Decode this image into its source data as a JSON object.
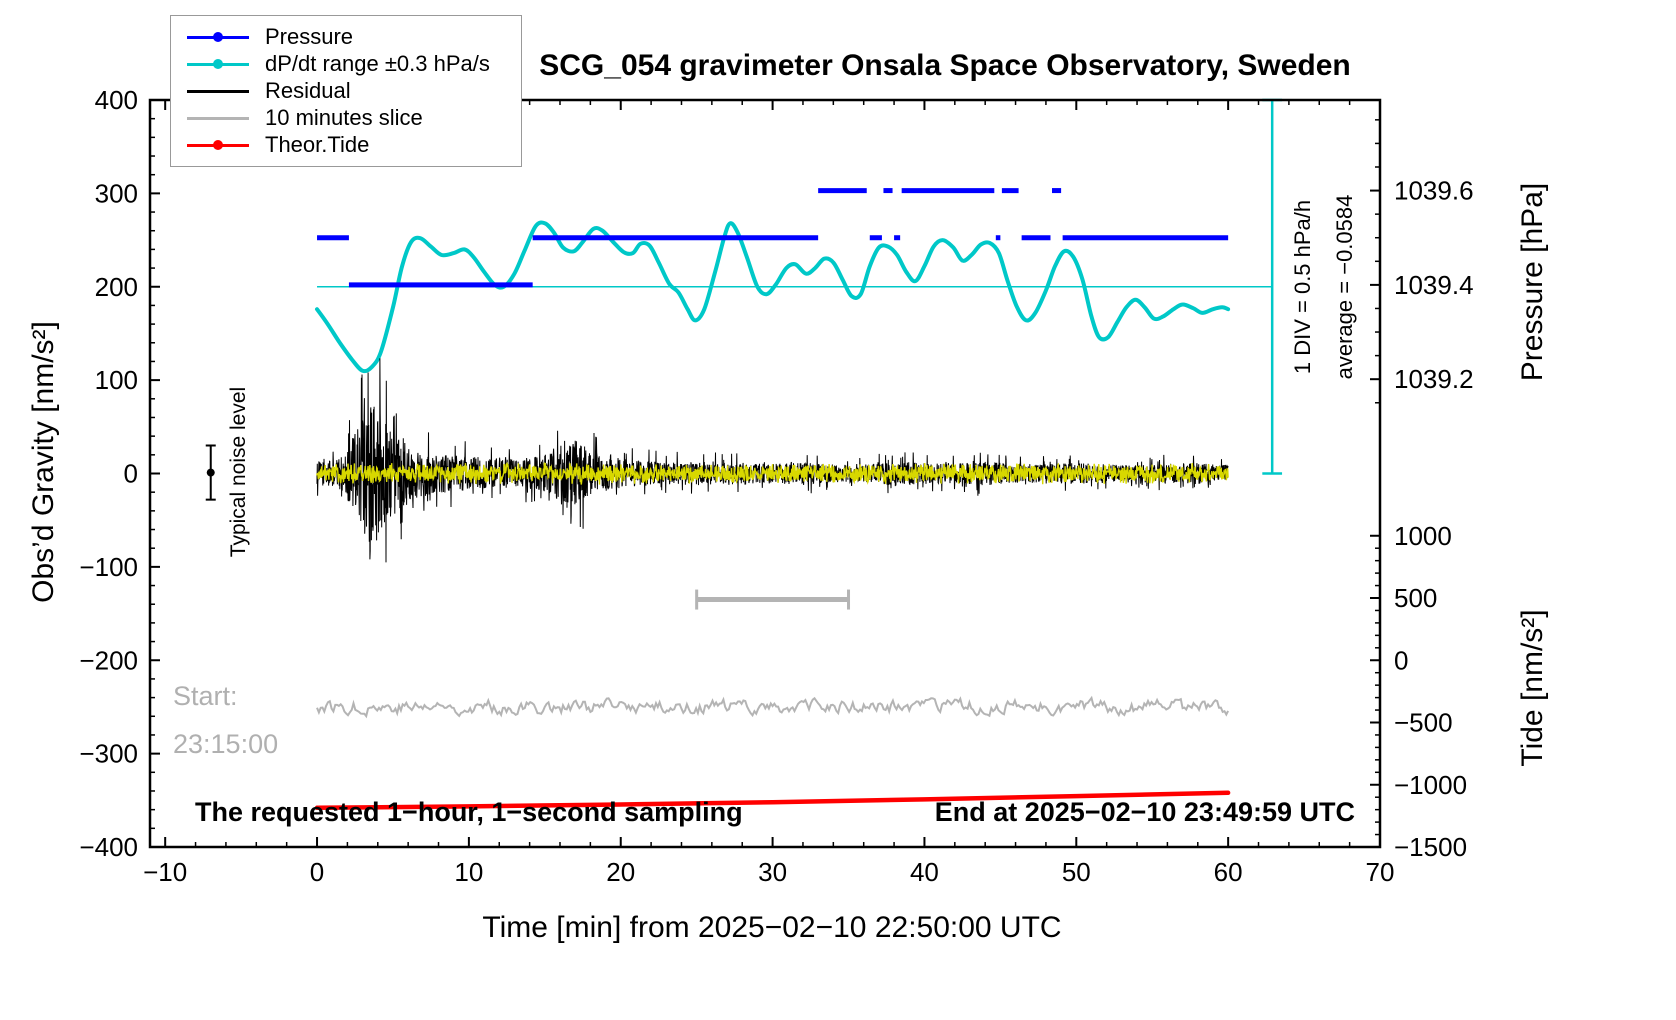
{
  "chart_data": {
    "type": "line",
    "title": "SCG_054 gravimeter Onsala Space Observatory, Sweden",
    "xlabel": "Time [min] from 2025−02−10 22:50:00 UTC",
    "ylabel_left": "Obs’d Gravity [nm/s²]",
    "ylabel_pressure": "Pressure [hPa]",
    "ylabel_tide": "Tide [nm/s²]",
    "xlim": [
      -11,
      70
    ],
    "ylim": [
      -400,
      400
    ],
    "x_ticks": [
      -10,
      0,
      10,
      20,
      30,
      40,
      50,
      60,
      70
    ],
    "y_ticks": [
      -400,
      -300,
      -200,
      -100,
      0,
      100,
      200,
      300,
      400
    ],
    "pressure_ticks": [
      1039.2,
      1039.4,
      1039.6
    ],
    "pressure_map": {
      "offset": 1039.0,
      "scale": 505
    },
    "tide_ticks": [
      -1500,
      -1000,
      -500,
      0,
      500,
      1000
    ],
    "tide_map": {
      "tide0": -1500,
      "left0": -400,
      "left_per_tide": 0.13333
    },
    "grid": false,
    "legend_position": "top-left",
    "colors": {
      "pressure": "#0000ff",
      "dpdt": "#00c8c8",
      "residual": "#000000",
      "slice": "#b4b4b4",
      "tide": "#ff0000",
      "overlay": "#d8d800"
    },
    "legend": [
      {
        "label": "Pressure",
        "color": "#0000ff",
        "dot": true
      },
      {
        "label": "dP/dt range ±0.3 hPa/s",
        "color": "#00c8c8",
        "dot": true
      },
      {
        "label": "Residual",
        "color": "#000000",
        "dot": false
      },
      {
        "label": "10 minutes slice",
        "color": "#b4b4b4",
        "dot": false
      },
      {
        "label": "Theor.Tide",
        "color": "#ff0000",
        "dot": true
      }
    ],
    "annotations": {
      "noise_label": "Typical noise level",
      "start_line1": "Start:",
      "start_line2": "23:15:00",
      "bottom_left": "The requested 1−hour, 1−second sampling",
      "bottom_right": "End at 2025−02−10 23:49:59 UTC",
      "div_scale": "1 DIV = 0.5 hPa/h",
      "average": "average = −0.0584"
    },
    "series": {
      "pressure_segments": [
        {
          "x0": 0.0,
          "x1": 2.1,
          "p": 1039.5
        },
        {
          "x0": 2.1,
          "x1": 14.2,
          "p": 1039.4
        },
        {
          "x0": 14.2,
          "x1": 33.0,
          "p": 1039.5
        },
        {
          "x0": 33.0,
          "x1": 36.2,
          "p": 1039.6
        },
        {
          "x0": 36.4,
          "x1": 37.2,
          "p": 1039.5
        },
        {
          "x0": 37.3,
          "x1": 37.9,
          "p": 1039.6
        },
        {
          "x0": 38.0,
          "x1": 38.4,
          "p": 1039.5
        },
        {
          "x0": 38.5,
          "x1": 44.6,
          "p": 1039.6
        },
        {
          "x0": 44.7,
          "x1": 45.0,
          "p": 1039.5
        },
        {
          "x0": 45.1,
          "x1": 46.2,
          "p": 1039.6
        },
        {
          "x0": 46.4,
          "x1": 48.3,
          "p": 1039.5
        },
        {
          "x0": 48.4,
          "x1": 49.0,
          "p": 1039.6
        },
        {
          "x0": 49.1,
          "x1": 60.0,
          "p": 1039.5
        }
      ],
      "dpdt_ref_level": 200,
      "dpdt": {
        "points": [
          [
            0,
            176
          ],
          [
            0.7,
            160
          ],
          [
            1.5,
            140
          ],
          [
            2.3,
            122
          ],
          [
            3,
            110
          ],
          [
            3.6,
            114
          ],
          [
            4.2,
            130
          ],
          [
            5,
            178
          ],
          [
            5.6,
            222
          ],
          [
            6.2,
            248
          ],
          [
            6.8,
            252
          ],
          [
            7.5,
            243
          ],
          [
            8.2,
            234
          ],
          [
            9,
            236
          ],
          [
            9.7,
            240
          ],
          [
            10.3,
            232
          ],
          [
            11,
            216
          ],
          [
            11.7,
            202
          ],
          [
            12.3,
            200
          ],
          [
            13,
            214
          ],
          [
            13.7,
            240
          ],
          [
            14.4,
            265
          ],
          [
            15,
            268
          ],
          [
            15.6,
            258
          ],
          [
            16.2,
            242
          ],
          [
            16.9,
            238
          ],
          [
            17.5,
            248
          ],
          [
            18.2,
            262
          ],
          [
            18.8,
            260
          ],
          [
            19.5,
            248
          ],
          [
            20.2,
            237
          ],
          [
            20.8,
            236
          ],
          [
            21.3,
            246
          ],
          [
            21.9,
            244
          ],
          [
            22.5,
            226
          ],
          [
            23.2,
            203
          ],
          [
            23.8,
            194
          ],
          [
            24.4,
            176
          ],
          [
            24.9,
            164
          ],
          [
            25.5,
            176
          ],
          [
            26.2,
            215
          ],
          [
            26.8,
            252
          ],
          [
            27.2,
            268
          ],
          [
            27.7,
            258
          ],
          [
            28.3,
            232
          ],
          [
            29,
            200
          ],
          [
            29.6,
            192
          ],
          [
            30.2,
            202
          ],
          [
            30.9,
            220
          ],
          [
            31.5,
            224
          ],
          [
            32.2,
            214
          ],
          [
            32.8,
            220
          ],
          [
            33.4,
            230
          ],
          [
            34,
            226
          ],
          [
            34.6,
            208
          ],
          [
            35.2,
            190
          ],
          [
            35.8,
            192
          ],
          [
            36.4,
            222
          ],
          [
            37,
            242
          ],
          [
            37.6,
            243
          ],
          [
            38.2,
            234
          ],
          [
            38.8,
            216
          ],
          [
            39.4,
            206
          ],
          [
            40,
            222
          ],
          [
            40.6,
            243
          ],
          [
            41.2,
            250
          ],
          [
            41.9,
            242
          ],
          [
            42.5,
            228
          ],
          [
            43.1,
            234
          ],
          [
            43.7,
            245
          ],
          [
            44.3,
            247
          ],
          [
            44.9,
            236
          ],
          [
            45.5,
            205
          ],
          [
            46.1,
            178
          ],
          [
            46.7,
            164
          ],
          [
            47.3,
            172
          ],
          [
            48,
            196
          ],
          [
            48.6,
            222
          ],
          [
            49.2,
            238
          ],
          [
            49.8,
            232
          ],
          [
            50.4,
            208
          ],
          [
            51,
            168
          ],
          [
            51.5,
            146
          ],
          [
            52.1,
            146
          ],
          [
            52.7,
            162
          ],
          [
            53.3,
            178
          ],
          [
            53.9,
            186
          ],
          [
            54.5,
            178
          ],
          [
            55.1,
            166
          ],
          [
            55.7,
            168
          ],
          [
            56.4,
            176
          ],
          [
            57,
            181
          ],
          [
            57.7,
            177
          ],
          [
            58.3,
            172
          ],
          [
            59,
            176
          ],
          [
            59.6,
            178
          ],
          [
            60,
            176
          ]
        ]
      },
      "residual": {
        "x_range": [
          0,
          60
        ],
        "sampling_step": 0.02,
        "envelope": [
          [
            0,
            26
          ],
          [
            1.2,
            28
          ],
          [
            1.8,
            40
          ],
          [
            2.2,
            70
          ],
          [
            2.6,
            95
          ],
          [
            3,
            125
          ],
          [
            3.4,
            150
          ],
          [
            3.8,
            155
          ],
          [
            4.2,
            130
          ],
          [
            4.6,
            108
          ],
          [
            5,
            92
          ],
          [
            5.5,
            75
          ],
          [
            6,
            60
          ],
          [
            6.5,
            52
          ],
          [
            7,
            48
          ],
          [
            8,
            42
          ],
          [
            9,
            40
          ],
          [
            10,
            36
          ],
          [
            11,
            33
          ],
          [
            12,
            31
          ],
          [
            13,
            31
          ],
          [
            14,
            34
          ],
          [
            15,
            42
          ],
          [
            15.5,
            55
          ],
          [
            16,
            65
          ],
          [
            16.5,
            76
          ],
          [
            17,
            72
          ],
          [
            17.5,
            62
          ],
          [
            18,
            52
          ],
          [
            18.5,
            45
          ],
          [
            19,
            40
          ],
          [
            20,
            32
          ],
          [
            21,
            28
          ],
          [
            22,
            26
          ],
          [
            23,
            24
          ],
          [
            24,
            24
          ],
          [
            25,
            26
          ],
          [
            26,
            24
          ],
          [
            27,
            23
          ],
          [
            28,
            24
          ],
          [
            29,
            22
          ],
          [
            30,
            21
          ],
          [
            31,
            23
          ],
          [
            32,
            22
          ],
          [
            33,
            21
          ],
          [
            34,
            20
          ],
          [
            35,
            19
          ],
          [
            36,
            19
          ],
          [
            37,
            23
          ],
          [
            38,
            26
          ],
          [
            39,
            24
          ],
          [
            40,
            22
          ],
          [
            41,
            21
          ],
          [
            42,
            21
          ],
          [
            43,
            23
          ],
          [
            44,
            26
          ],
          [
            45,
            23
          ],
          [
            46,
            21
          ],
          [
            47,
            20
          ],
          [
            48,
            20
          ],
          [
            49,
            21
          ],
          [
            50,
            23
          ],
          [
            51,
            21
          ],
          [
            52,
            20
          ],
          [
            53,
            19
          ],
          [
            54,
            19
          ],
          [
            55,
            20
          ],
          [
            56,
            21
          ],
          [
            57,
            22
          ],
          [
            58,
            23
          ],
          [
            59,
            21
          ],
          [
            60,
            20
          ]
        ]
      },
      "overlay": {
        "x_range": [
          0,
          60
        ],
        "amplitude": 12
      },
      "slice": {
        "x_range": [
          0,
          60
        ],
        "center": -250,
        "amplitude": 13
      },
      "slice_bar": {
        "x0": 25,
        "x1": 35,
        "y": -135
      },
      "tide": {
        "points": [
          [
            0,
            -358
          ],
          [
            10,
            -356.5
          ],
          [
            20,
            -354.5
          ],
          [
            30,
            -352
          ],
          [
            40,
            -349
          ],
          [
            50,
            -345.5
          ],
          [
            60,
            -342
          ]
        ]
      },
      "noise_marker": {
        "x": -7,
        "y": 1,
        "err": 29
      },
      "scalebar": {
        "x": 62.9,
        "y0": 0,
        "y1": 400,
        "cap": 0.65
      }
    }
  }
}
